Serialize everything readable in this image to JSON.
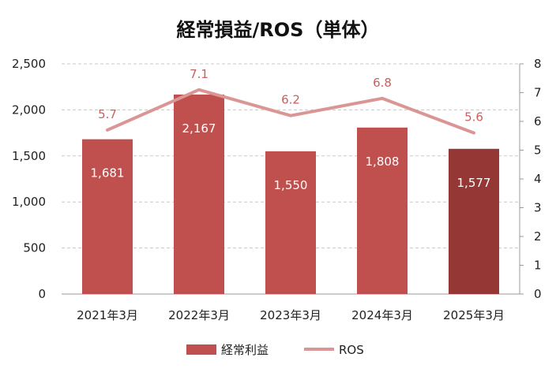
{
  "chart_data": {
    "type": "bar",
    "title": "経常損益/ROS（単体）",
    "categories": [
      "2021年3月",
      "2022年3月",
      "2023年3月",
      "2024年3月",
      "2025年3月"
    ],
    "series": [
      {
        "name": "経常利益",
        "type": "bar",
        "axis": "left",
        "values": [
          1681,
          2167,
          1550,
          1808,
          1577
        ],
        "labels": [
          "1,681",
          "2,167",
          "1,550",
          "1,808",
          "1,577"
        ],
        "color": "#c0504d",
        "highlight_color": "#953735",
        "highlight_index": 4
      },
      {
        "name": "ROS",
        "type": "line",
        "axis": "right",
        "values": [
          5.7,
          7.1,
          6.2,
          6.8,
          5.6
        ],
        "labels": [
          "5.7",
          "7.1",
          "6.2",
          "6.8",
          "5.6"
        ],
        "color": "#d99694",
        "label_color": "#c9605e"
      }
    ],
    "y_left": {
      "lim": [
        0,
        2500
      ],
      "ticks": [
        0,
        500,
        1000,
        1500,
        2000,
        2500
      ],
      "tick_labels": [
        "0",
        "500",
        "1,000",
        "1,500",
        "2,000",
        "2,500"
      ]
    },
    "y_right": {
      "lim": [
        0,
        8
      ],
      "ticks": [
        0,
        1,
        2,
        3,
        4,
        5,
        6,
        7,
        8
      ],
      "tick_labels": [
        "0",
        "1",
        "2",
        "3",
        "4",
        "5",
        "6",
        "7",
        "8"
      ]
    },
    "grid": true,
    "legend_position": "bottom"
  }
}
